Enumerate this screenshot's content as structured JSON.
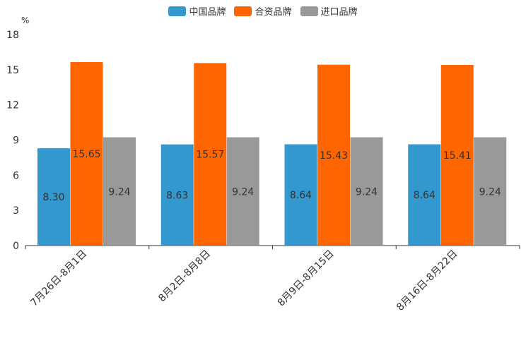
{
  "chart_data": {
    "type": "bar",
    "title": "",
    "ylabel": "%",
    "xlabel": "",
    "ylim": [
      0,
      18
    ],
    "yticks": [
      0,
      3,
      6,
      9,
      12,
      15,
      18
    ],
    "categories": [
      "7月26日-8月1日",
      "8月2日-8月8日",
      "8月9日-8月15日",
      "8月16日-8月22日"
    ],
    "series": [
      {
        "name": "中国品牌",
        "color": "#3398ce",
        "values": [
          8.3,
          8.63,
          8.64,
          8.64
        ],
        "labels": [
          "8.30",
          "8.63",
          "8.64",
          "8.64"
        ]
      },
      {
        "name": "合资品牌",
        "color": "#ff6600",
        "values": [
          15.65,
          15.57,
          15.43,
          15.41
        ],
        "labels": [
          "15.65",
          "15.57",
          "15.43",
          "15.41"
        ]
      },
      {
        "name": "进口品牌",
        "color": "#999999",
        "values": [
          9.24,
          9.24,
          9.24,
          9.24
        ],
        "labels": [
          "9.24",
          "9.24",
          "9.24",
          "9.24"
        ]
      }
    ],
    "legend_position": "top-center",
    "grid": false
  }
}
